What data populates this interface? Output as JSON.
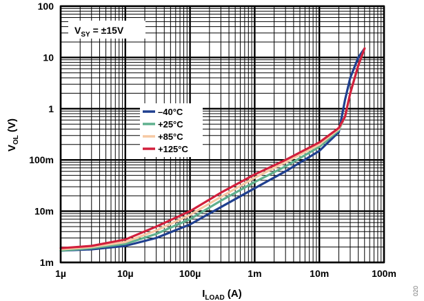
{
  "chart_data": {
    "type": "line",
    "title": "",
    "xlabel": {
      "main": "I",
      "sub": "LOAD",
      "unit": " (A)"
    },
    "ylabel": {
      "main": "V",
      "sub": "OL",
      "unit": " (V)"
    },
    "xscale": "log",
    "yscale": "log",
    "xlim": [
      1e-06,
      0.1
    ],
    "ylim": [
      0.001,
      100
    ],
    "x_ticks": [
      {
        "value": 1e-06,
        "label": "1µ"
      },
      {
        "value": 1e-05,
        "label": "10µ"
      },
      {
        "value": 0.0001,
        "label": "100µ"
      },
      {
        "value": 0.001,
        "label": "1m"
      },
      {
        "value": 0.01,
        "label": "10m"
      },
      {
        "value": 0.1,
        "label": "100m"
      }
    ],
    "y_ticks": [
      {
        "value": 0.001,
        "label": "1m"
      },
      {
        "value": 0.01,
        "label": "10m"
      },
      {
        "value": 0.1,
        "label": "100m"
      },
      {
        "value": 1,
        "label": "1"
      },
      {
        "value": 10,
        "label": "10"
      },
      {
        "value": 100,
        "label": "100"
      }
    ],
    "grid": true,
    "annotation": {
      "main": "V",
      "sub": "SY",
      "rest": " = ±15V"
    },
    "legend_position": "center-left",
    "series": [
      {
        "name": "–40°C",
        "color": "#1f3f8f",
        "x": [
          1e-06,
          3e-06,
          1e-05,
          3e-05,
          0.0001,
          0.0003,
          0.001,
          0.003,
          0.01,
          0.02,
          0.025,
          0.03,
          0.04,
          0.05
        ],
        "y": [
          0.0017,
          0.0018,
          0.0021,
          0.003,
          0.0055,
          0.012,
          0.028,
          0.06,
          0.15,
          0.35,
          1.5,
          4,
          10,
          15
        ]
      },
      {
        "name": "+25°C",
        "color": "#5fb08e",
        "x": [
          1e-06,
          3e-06,
          1e-05,
          3e-05,
          0.0001,
          0.0003,
          0.001,
          0.003,
          0.01,
          0.02,
          0.025,
          0.03,
          0.04,
          0.05
        ],
        "y": [
          0.0017,
          0.0019,
          0.0023,
          0.0036,
          0.007,
          0.016,
          0.037,
          0.075,
          0.18,
          0.38,
          0.7,
          2,
          7,
          15
        ]
      },
      {
        "name": "+85°C",
        "color": "#f6c8a3",
        "x": [
          1e-06,
          3e-06,
          1e-05,
          3e-05,
          0.0001,
          0.0003,
          0.001,
          0.003,
          0.01,
          0.02,
          0.025,
          0.03,
          0.04,
          0.05
        ],
        "y": [
          0.0018,
          0.002,
          0.0025,
          0.0042,
          0.0085,
          0.019,
          0.045,
          0.09,
          0.2,
          0.4,
          0.7,
          2,
          7,
          15
        ]
      },
      {
        "name": "+125°C",
        "color": "#d21f3c",
        "x": [
          1e-06,
          3e-06,
          1e-05,
          3e-05,
          0.0001,
          0.0003,
          0.001,
          0.003,
          0.01,
          0.02,
          0.025,
          0.03,
          0.04,
          0.05
        ],
        "y": [
          0.0019,
          0.0021,
          0.0028,
          0.005,
          0.01,
          0.023,
          0.052,
          0.1,
          0.22,
          0.42,
          0.7,
          2,
          7,
          15
        ]
      }
    ]
  },
  "figure_id": "020"
}
